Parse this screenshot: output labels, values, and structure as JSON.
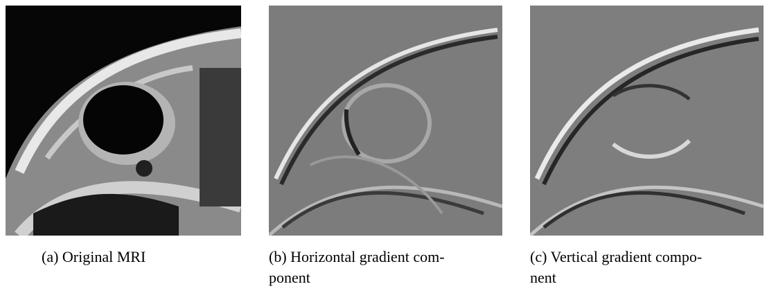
{
  "figure": {
    "panels": [
      {
        "caption_lines": [
          "(a) Original MRI"
        ]
      },
      {
        "caption_lines": [
          "(b) Horizontal gradient com-",
          "ponent"
        ]
      },
      {
        "caption_lines": [
          "(c) Vertical gradient compo-",
          "nent"
        ]
      }
    ]
  }
}
